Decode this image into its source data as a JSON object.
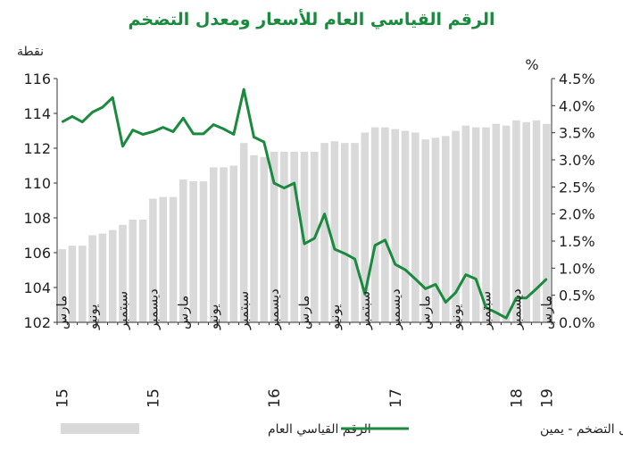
{
  "chart_data": {
    "type": "bar+line",
    "title": "الرقم القياسي العام للأسعار ومعدل التضخم",
    "left_axis": {
      "unit": "نقطة",
      "range": [
        102,
        116
      ],
      "ticks": [
        "102",
        "104",
        "106",
        "108",
        "110",
        "112",
        "114",
        "116"
      ]
    },
    "right_axis": {
      "unit": "%",
      "range": [
        0,
        4.5
      ],
      "ticks": [
        "0.0%",
        "0.5%",
        "1.0%",
        "1.5%",
        "2.0%",
        "2.5%",
        "3.0%",
        "3.5%",
        "4.0%",
        "4.5%"
      ]
    },
    "x_month_labels": [
      "مارس",
      "يونيو",
      "سبتمبر",
      "ديسمبر",
      "مارس",
      "يونيو",
      "سبتمبر",
      "ديسمبر",
      "مارس",
      "يونيو",
      "سبتمبر",
      "ديسمبر",
      "مارس",
      "يونيو",
      "سبتمبر",
      "ديسمبر",
      "مارس"
    ],
    "x_month_index": [
      0,
      3,
      6,
      9,
      12,
      15,
      18,
      21,
      24,
      27,
      30,
      33,
      36,
      39,
      42,
      45,
      48
    ],
    "x_year_labels": [
      "15",
      "15",
      "16",
      "17",
      "18",
      "19"
    ],
    "x_year_index": [
      0,
      9,
      21,
      33,
      45,
      48
    ],
    "series": [
      {
        "name": "الرقم القياسي العام",
        "type": "bar",
        "axis": "left",
        "color": "#d9d9d9",
        "values": [
          106.2,
          106.4,
          106.4,
          107.0,
          107.1,
          107.3,
          107.6,
          107.9,
          107.9,
          109.1,
          109.2,
          109.2,
          110.2,
          110.1,
          110.1,
          110.9,
          110.9,
          111.0,
          112.3,
          111.6,
          111.5,
          111.8,
          111.8,
          111.8,
          111.8,
          111.8,
          112.3,
          112.4,
          112.3,
          112.3,
          112.9,
          113.2,
          113.2,
          113.1,
          113.0,
          112.9,
          112.5,
          112.6,
          112.7,
          113.0,
          113.3,
          113.2,
          113.2,
          113.4,
          113.3,
          113.6,
          113.5,
          113.6,
          113.4
        ]
      },
      {
        "name": "معدل التضخم - يمين",
        "type": "line",
        "axis": "right",
        "color": "#1a8a3e",
        "values": [
          3.7,
          3.8,
          3.7,
          3.88,
          3.97,
          4.15,
          3.25,
          3.55,
          3.47,
          3.52,
          3.6,
          3.52,
          3.77,
          3.48,
          3.48,
          3.65,
          3.57,
          3.47,
          4.3,
          3.42,
          3.33,
          2.57,
          2.48,
          2.57,
          1.45,
          1.55,
          2.0,
          1.35,
          1.27,
          1.17,
          0.52,
          1.42,
          1.52,
          1.07,
          0.97,
          0.8,
          0.62,
          0.7,
          0.37,
          0.55,
          0.88,
          0.8,
          0.27,
          0.18,
          0.08,
          0.45,
          0.45,
          0.62,
          0.8
        ]
      }
    ],
    "legend": {
      "position": "bottom",
      "bar_label": "الرقم القياسي العام",
      "line_label": "معدل التضخم - يمين"
    },
    "grid": false
  }
}
